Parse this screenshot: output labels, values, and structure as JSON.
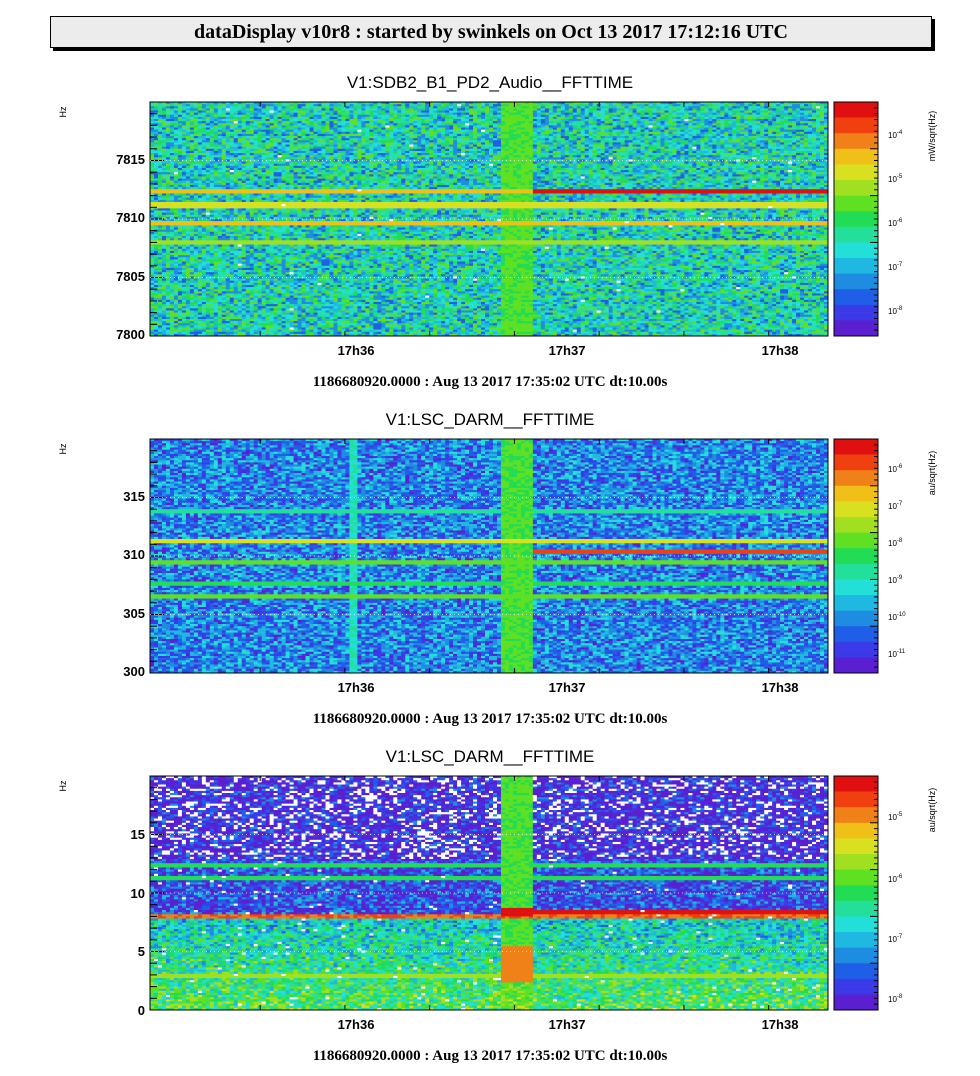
{
  "header": {
    "title": "dataDisplay v10r8 : started by swinkels on Oct 13 2017 17:12:16 UTC"
  },
  "colors": {
    "palette": [
      "#5a1fd0",
      "#3a3ae8",
      "#1f5fe8",
      "#1e8ce0",
      "#1eb8e0",
      "#22e0d8",
      "#22e09a",
      "#22dc55",
      "#5fe022",
      "#a0e020",
      "#d8e020",
      "#f0c018",
      "#f08018",
      "#f04010",
      "#e01010"
    ]
  },
  "chart_data": [
    {
      "type": "heatmap",
      "title": "V1:SDB2_B1_PD2_Audio__FFTTIME",
      "ylabel": "Hz",
      "ylim": [
        7800,
        7820
      ],
      "yticks": [
        "7800",
        "7805",
        "7810",
        "7815"
      ],
      "xticks": [
        "17h36",
        "17h37",
        "17h38"
      ],
      "zlabel": "mW/sqrt(Hz)",
      "zticks": [
        "10-8",
        "10-7",
        "10-6",
        "10-5",
        "10-4"
      ],
      "footer": "1186680920.0000 : Aug 13 2017 17:35:02 UTC dt:10.00s",
      "features": {
        "lines_hz": [
          7808.0,
          7809.7,
          7811.2,
          7812.3
        ],
        "glitch_line_hz": 7812.4
      }
    },
    {
      "type": "heatmap",
      "title": "V1:LSC_DARM__FFTTIME",
      "ylabel": "Hz",
      "ylim": [
        300,
        320
      ],
      "yticks": [
        "300",
        "305",
        "310",
        "315"
      ],
      "xticks": [
        "17h36",
        "17h37",
        "17h38"
      ],
      "zlabel": "au/sqrt(Hz)",
      "zticks": [
        "10-11",
        "10-10",
        "10-9",
        "10-8",
        "10-7",
        "10-6"
      ],
      "footer": "1186680920.0000 : Aug 13 2017 17:35:02 UTC dt:10.00s",
      "features": {
        "lines_hz": [
          306.5,
          307.7,
          309.4,
          311.3,
          313.8
        ],
        "glitch_line_hz": 310.4
      }
    },
    {
      "type": "heatmap",
      "title": "V1:LSC_DARM__FFTTIME",
      "ylabel": "Hz",
      "ylim": [
        0,
        20
      ],
      "yticks": [
        "0",
        "5",
        "10",
        "15"
      ],
      "xticks": [
        "17h36",
        "17h37",
        "17h38"
      ],
      "zlabel": "au/sqrt(Hz)",
      "zticks": [
        "10-8",
        "10-7",
        "10-6",
        "10-5"
      ],
      "footer": "1186680920.0000 : Aug 13 2017 17:35:02 UTC dt:10.00s",
      "features": {
        "lines_hz": [
          2.9,
          8.0,
          11.2,
          12.3
        ],
        "glitch_line_hz": 8.4
      }
    }
  ]
}
